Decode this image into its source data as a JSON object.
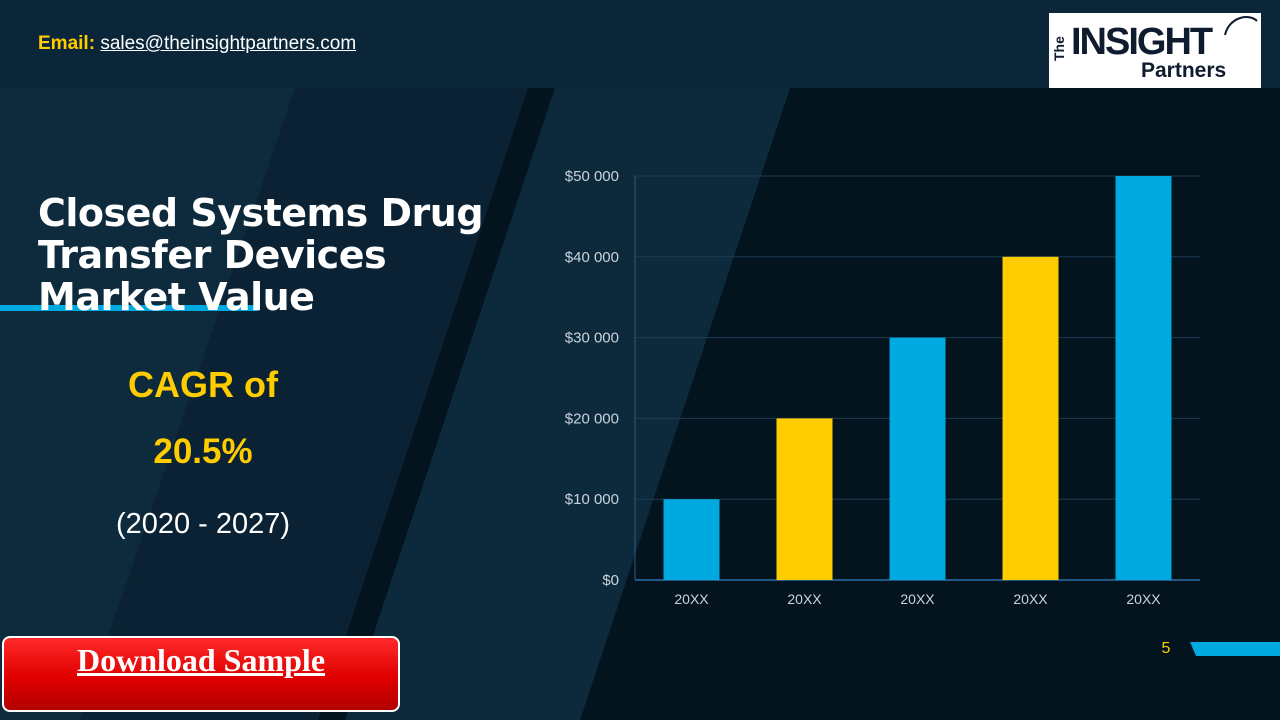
{
  "header": {
    "email_label": "Email:",
    "email_address": "sales@theinsightpartners.com"
  },
  "logo": {
    "line1_prefix": "The",
    "line1": "INSIGHT",
    "line2": "Partners"
  },
  "headline": {
    "title_line1": "Closed Systems Drug",
    "title_line2": "Transfer Devices",
    "title_line3": "Market Value",
    "cagr_label": "CAGR of",
    "cagr_value": "20.5%",
    "period": "(2020 - 2027)"
  },
  "cta": {
    "download_label": "Download Sample"
  },
  "footer": {
    "page_number": "5"
  },
  "colors": {
    "background": "#04141f",
    "accent_yellow": "#ffcc00",
    "accent_blue": "#00a9e0",
    "cta_red": "#e00000"
  },
  "chart_data": {
    "type": "bar",
    "categories": [
      "20XX",
      "20XX",
      "20XX",
      "20XX",
      "20XX"
    ],
    "values": [
      10000,
      20000,
      30000,
      40000,
      50000
    ],
    "bar_colors": [
      "#00a9e0",
      "#ffcc00",
      "#00a9e0",
      "#ffcc00",
      "#00a9e0"
    ],
    "ylim": [
      0,
      50000
    ],
    "yticks": [
      0,
      10000,
      20000,
      30000,
      40000,
      50000
    ],
    "ytick_labels": [
      "$0",
      "$10 000",
      "$20 000",
      "$30 000",
      "$40 000",
      "$50 000"
    ],
    "grid": true,
    "legend": "none"
  }
}
